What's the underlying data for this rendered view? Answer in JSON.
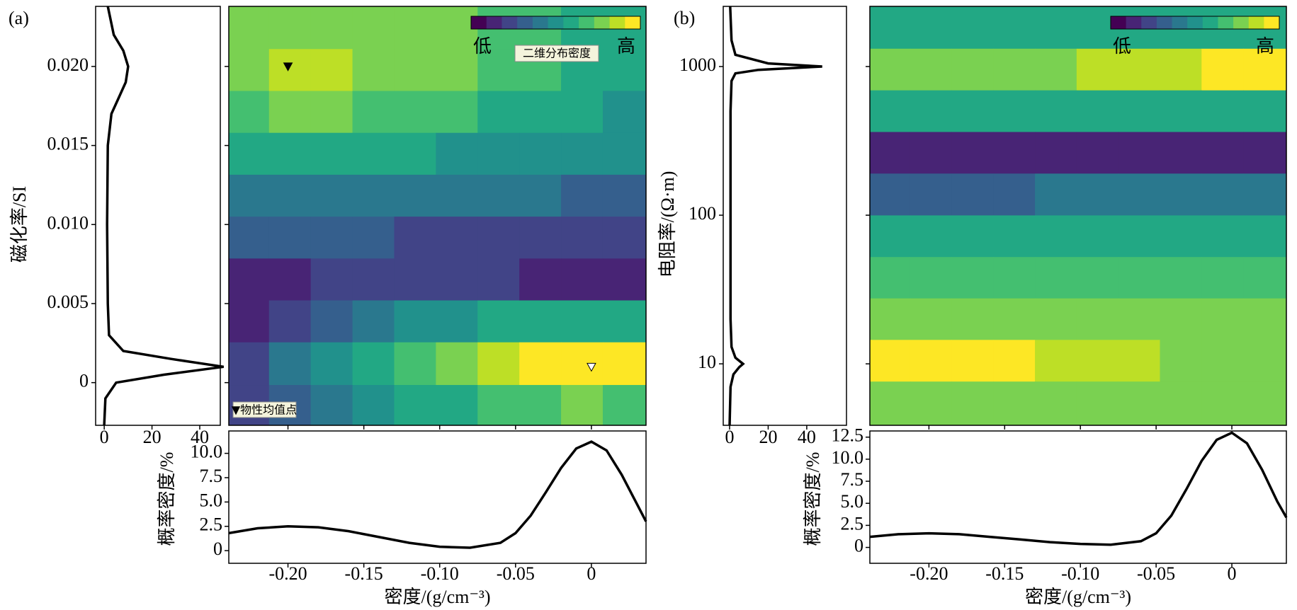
{
  "chart_data": [
    {
      "type": "contour",
      "panel_label": "(a)",
      "ylabel": "磁化率/SI",
      "log_y": false,
      "xlim": [
        -0.239,
        0.036
      ],
      "ylim": [
        -0.0027,
        0.0238
      ],
      "xticks": [
        {
          "value": -0.2,
          "label": "-0.20"
        },
        -0.15,
        {
          "value": -0.1,
          "label": "-0.10"
        },
        -0.05,
        0
      ],
      "yticks": [
        0,
        0.005,
        {
          "value": 0.01,
          "label": "0.010"
        },
        0.015,
        {
          "value": 0.02,
          "label": "0.020"
        }
      ],
      "grid_x": [
        -0.226,
        -0.199,
        -0.171,
        -0.144,
        -0.116,
        -0.089,
        -0.061,
        -0.034,
        -0.006,
        0.021
      ],
      "grid_y": [
        0.0224,
        0.0198,
        0.0171,
        0.0145,
        0.0118,
        0.0092,
        0.0065,
        0.0039,
        0.0012,
        -0.0015
      ],
      "z": [
        [
          0.78,
          0.8,
          0.8,
          0.79,
          0.77,
          0.74,
          0.7,
          0.66,
          0.62,
          0.58
        ],
        [
          0.8,
          0.82,
          0.82,
          0.8,
          0.78,
          0.75,
          0.7,
          0.66,
          0.62,
          0.58
        ],
        [
          0.72,
          0.74,
          0.74,
          0.72,
          0.7,
          0.67,
          0.63,
          0.6,
          0.57,
          0.54
        ],
        [
          0.58,
          0.59,
          0.59,
          0.58,
          0.56,
          0.54,
          0.52,
          0.5,
          0.48,
          0.46
        ],
        [
          0.42,
          0.43,
          0.43,
          0.42,
          0.41,
          0.4,
          0.38,
          0.37,
          0.36,
          0.35
        ],
        [
          0.28,
          0.29,
          0.29,
          0.28,
          0.27,
          0.26,
          0.25,
          0.25,
          0.24,
          0.24
        ],
        [
          0.16,
          0.18,
          0.2,
          0.21,
          0.21,
          0.2,
          0.19,
          0.18,
          0.17,
          0.16
        ],
        [
          0.1,
          0.22,
          0.32,
          0.4,
          0.47,
          0.52,
          0.55,
          0.57,
          0.58,
          0.57
        ],
        [
          0.25,
          0.38,
          0.5,
          0.6,
          0.68,
          0.76,
          0.84,
          0.92,
          0.98,
          0.94
        ],
        [
          0.2,
          0.3,
          0.4,
          0.48,
          0.55,
          0.62,
          0.68,
          0.72,
          0.74,
          0.72
        ]
      ],
      "colorbar_low": "低",
      "colorbar_high": "高",
      "colorbar_label": "二维分布密度",
      "mean_points": {
        "x": [
          -0.2,
          0
        ],
        "y": [
          0.02,
          0.001
        ],
        "colors": [
          "#000000",
          "#ffffff"
        ]
      },
      "mean_points_label": "▼物性均值点",
      "y_marginal": {
        "type": "line",
        "xlim": [
          -3.6,
          48.6
        ],
        "xticks": [
          0,
          20,
          40
        ],
        "y": [
          -0.0027,
          -0.001,
          0,
          0.0005,
          0.001,
          0.0015,
          0.002,
          0.003,
          0.005,
          0.01,
          0.015,
          0.017,
          0.018,
          0.019,
          0.02,
          0.021,
          0.022,
          0.0238
        ],
        "values": [
          0,
          0.5,
          5,
          25,
          50,
          28,
          8,
          2,
          1.5,
          1.2,
          1.5,
          3,
          6,
          9,
          10,
          8,
          4,
          1.5
        ]
      },
      "x_marginal": {
        "type": "line",
        "ylabel": "概率密度/%",
        "xlabel": "密度/(g/cm⁻³)",
        "ylim": [
          -1.3,
          12.3
        ],
        "yticks": [
          0,
          2.5,
          {
            "value": 5,
            "label": "5.0"
          },
          7.5,
          {
            "value": 10,
            "label": "10.0"
          }
        ],
        "x": [
          -0.239,
          -0.22,
          -0.2,
          -0.18,
          -0.16,
          -0.14,
          -0.12,
          -0.1,
          -0.08,
          -0.06,
          -0.05,
          -0.04,
          -0.03,
          -0.02,
          -0.01,
          0,
          0.01,
          0.02,
          0.03,
          0.036
        ],
        "values": [
          1.8,
          2.3,
          2.5,
          2.4,
          2.0,
          1.4,
          0.8,
          0.4,
          0.3,
          0.8,
          1.8,
          3.6,
          6.0,
          8.5,
          10.5,
          11.2,
          10.3,
          7.8,
          4.8,
          3.0
        ]
      }
    },
    {
      "type": "contour",
      "panel_label": "(b)",
      "ylabel": "电阻率/(Ω·m)",
      "log_y": true,
      "xlim": [
        -0.239,
        0.036
      ],
      "ylim": [
        3.86,
        2540
      ],
      "xticks": [
        {
          "value": -0.2,
          "label": "-0.20"
        },
        -0.15,
        {
          "value": -0.1,
          "label": "-0.10"
        },
        -0.05,
        0
      ],
      "yticks": [
        10,
        100,
        1000
      ],
      "grid_x": [
        -0.226,
        -0.199,
        -0.171,
        -0.144,
        -0.116,
        -0.089,
        -0.061,
        -0.034,
        -0.006,
        0.021
      ],
      "grid_y": [
        1820,
        955,
        501,
        263,
        138,
        72,
        38,
        20,
        10.5,
        5.5
      ],
      "z": [
        [
          0.55,
          0.56,
          0.56,
          0.57,
          0.57,
          0.58,
          0.58,
          0.59,
          0.6,
          0.6
        ],
        [
          0.74,
          0.75,
          0.76,
          0.78,
          0.8,
          0.82,
          0.85,
          0.88,
          0.92,
          0.96
        ],
        [
          0.56,
          0.56,
          0.57,
          0.57,
          0.57,
          0.58,
          0.58,
          0.58,
          0.59,
          0.59
        ],
        [
          0.1,
          0.1,
          0.1,
          0.11,
          0.11,
          0.11,
          0.11,
          0.12,
          0.12,
          0.12
        ],
        [
          0.36,
          0.36,
          0.36,
          0.36,
          0.37,
          0.37,
          0.37,
          0.37,
          0.38,
          0.38
        ],
        [
          0.55,
          0.55,
          0.55,
          0.55,
          0.55,
          0.56,
          0.56,
          0.56,
          0.56,
          0.56
        ],
        [
          0.7,
          0.7,
          0.7,
          0.7,
          0.7,
          0.71,
          0.71,
          0.71,
          0.71,
          0.71
        ],
        [
          0.78,
          0.78,
          0.78,
          0.78,
          0.78,
          0.78,
          0.78,
          0.78,
          0.78,
          0.78
        ],
        [
          0.98,
          0.97,
          0.95,
          0.93,
          0.9,
          0.86,
          0.82,
          0.79,
          0.77,
          0.76
        ],
        [
          0.76,
          0.76,
          0.76,
          0.76,
          0.76,
          0.76,
          0.76,
          0.76,
          0.76,
          0.76
        ]
      ],
      "colorbar_low": "低",
      "colorbar_high": "高",
      "y_marginal": {
        "type": "line",
        "xlim": [
          -3.3,
          60.6
        ],
        "xticks": [
          0,
          20,
          40
        ],
        "y": [
          3.86,
          7,
          8.5,
          9.5,
          10,
          11,
          13,
          20,
          100,
          500,
          800,
          900,
          950,
          1000,
          1050,
          1200,
          1500,
          2540
        ],
        "values": [
          0,
          0.5,
          2,
          5,
          7,
          3,
          1,
          0.5,
          0.5,
          0.5,
          1,
          3,
          15,
          48,
          20,
          3,
          1,
          0.3
        ]
      },
      "x_marginal": {
        "type": "line",
        "ylabel": "概率密度/%",
        "xlabel": "密度/(g/cm⁻³)",
        "ylim": [
          -1.8,
          13.2
        ],
        "yticks": [
          0,
          2.5,
          {
            "value": 5,
            "label": "5.0"
          },
          7.5,
          {
            "value": 10,
            "label": "10.0"
          },
          12.5
        ],
        "x": [
          -0.239,
          -0.22,
          -0.2,
          -0.18,
          -0.16,
          -0.14,
          -0.12,
          -0.1,
          -0.08,
          -0.06,
          -0.05,
          -0.04,
          -0.03,
          -0.02,
          -0.01,
          0,
          0.01,
          0.02,
          0.03,
          0.036
        ],
        "values": [
          1.2,
          1.5,
          1.6,
          1.5,
          1.2,
          0.9,
          0.6,
          0.4,
          0.3,
          0.7,
          1.6,
          3.6,
          6.6,
          9.8,
          12.2,
          13.0,
          11.8,
          8.8,
          5.2,
          3.4
        ]
      }
    }
  ]
}
